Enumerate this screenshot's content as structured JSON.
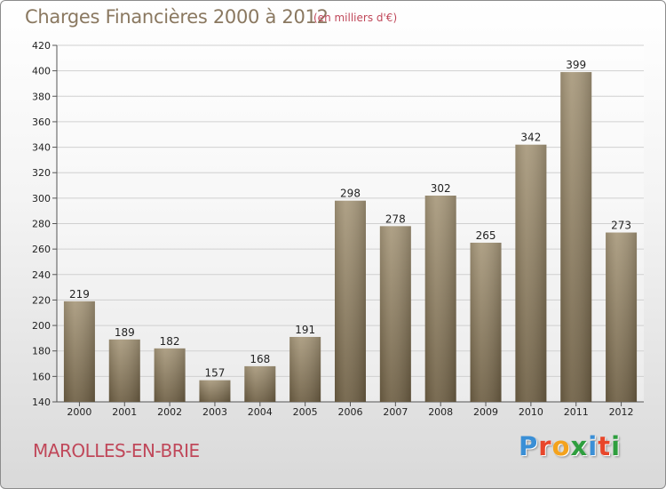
{
  "header": {
    "title": "Charges Financières 2000 à 2012",
    "subtitle": "(en milliers d'€)"
  },
  "footer": {
    "city": "MAROLLES-EN-BRIE",
    "logo_letters": [
      {
        "char": "P",
        "color": "#3a8fd6"
      },
      {
        "char": "r",
        "color": "#e8462a"
      },
      {
        "char": "o",
        "color": "#f4a21c"
      },
      {
        "char": "x",
        "color": "#2e9e3e"
      },
      {
        "char": "i",
        "color": "#3a8fd6"
      },
      {
        "char": "t",
        "color": "#e8462a"
      },
      {
        "char": "i",
        "color": "#2e9e3e"
      }
    ]
  },
  "chart_data": {
    "type": "bar",
    "categories": [
      "2000",
      "2001",
      "2002",
      "2003",
      "2004",
      "2005",
      "2006",
      "2007",
      "2008",
      "2009",
      "2010",
      "2011",
      "2012"
    ],
    "values": [
      219,
      189,
      182,
      157,
      168,
      191,
      298,
      278,
      302,
      265,
      342,
      399,
      273
    ],
    "ylim": [
      140,
      420
    ],
    "yticks": [
      140,
      160,
      180,
      200,
      220,
      240,
      260,
      280,
      300,
      320,
      340,
      360,
      380,
      400,
      420
    ],
    "grid": true,
    "legend": "none",
    "bar_color_top": "#a8997c",
    "bar_color_bottom": "#6e5f44",
    "grid_color": "#d0d0d0"
  }
}
